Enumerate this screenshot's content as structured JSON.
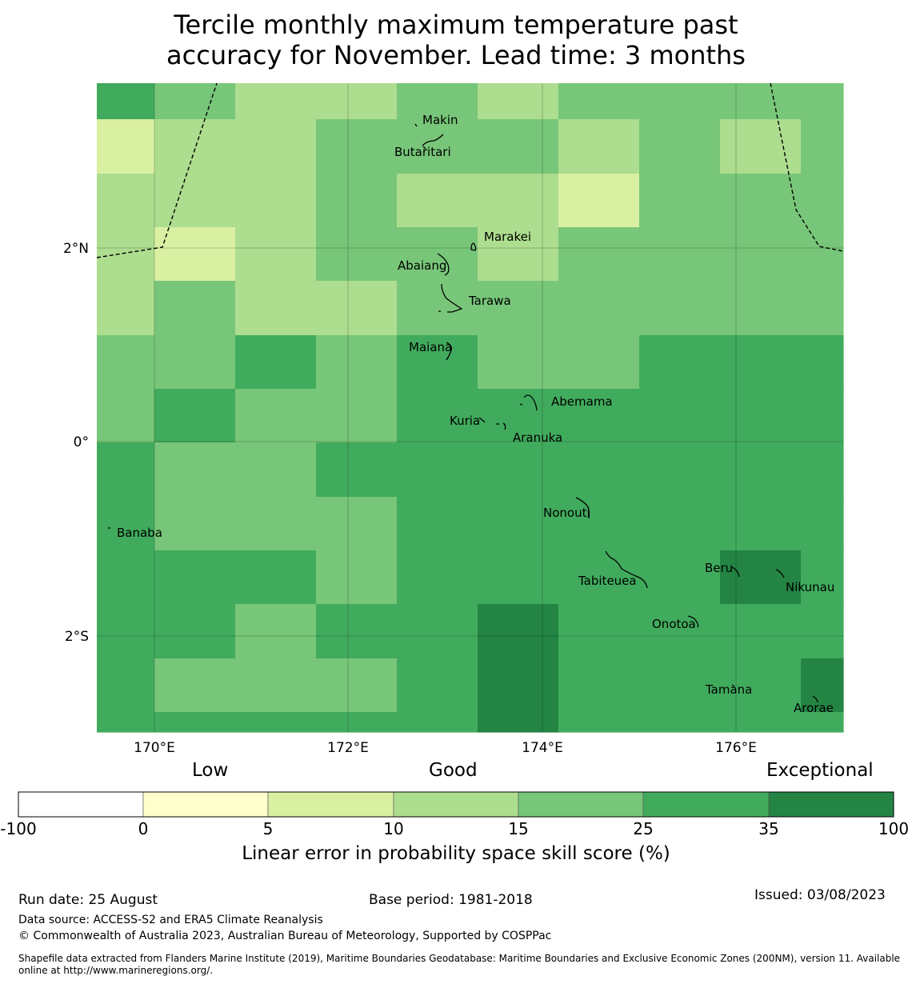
{
  "title": {
    "line1": "Tercile monthly maximum temperature past",
    "line2": "accuracy for November. Lead time: 3 months"
  },
  "map": {
    "lat_labels": [
      "2°N",
      "0°",
      "2°S"
    ],
    "lon_labels": [
      "170°E",
      "172°E",
      "174°E",
      "176°E"
    ],
    "cells": [
      [
        35,
        25,
        15,
        15,
        25,
        15,
        25,
        25,
        25,
        25
      ],
      [
        10,
        15,
        15,
        25,
        25,
        25,
        15,
        25,
        15,
        25
      ],
      [
        15,
        15,
        15,
        25,
        15,
        15,
        10,
        25,
        25,
        25
      ],
      [
        15,
        10,
        15,
        25,
        25,
        15,
        25,
        25,
        25,
        25
      ],
      [
        15,
        25,
        15,
        15,
        25,
        25,
        25,
        25,
        25,
        25
      ],
      [
        25,
        25,
        35,
        25,
        35,
        25,
        25,
        35,
        35,
        35
      ],
      [
        25,
        35,
        25,
        25,
        35,
        35,
        35,
        35,
        35,
        35
      ],
      [
        35,
        25,
        25,
        35,
        35,
        35,
        35,
        35,
        35,
        35
      ],
      [
        35,
        25,
        25,
        25,
        35,
        35,
        35,
        35,
        35,
        35
      ],
      [
        35,
        35,
        35,
        25,
        35,
        35,
        35,
        35,
        100,
        35
      ],
      [
        35,
        35,
        25,
        35,
        35,
        100,
        35,
        35,
        35,
        35
      ],
      [
        35,
        25,
        25,
        25,
        35,
        100,
        35,
        35,
        35,
        100
      ],
      [
        35,
        35,
        35,
        35,
        35,
        100,
        35,
        35,
        35,
        35
      ]
    ],
    "islands": [
      "Makin",
      "Butaritari",
      "Marakei",
      "Abaiang",
      "Tarawa",
      "Maiana",
      "Abemama",
      "Kuria",
      "Aranuka",
      "Banaba",
      "Nonouti",
      "Beru",
      "Nikunau",
      "Tabiteuea",
      "Onotoa",
      "Tamana",
      "Arorae"
    ]
  },
  "colorbar": {
    "categories": [
      "Low",
      "Good",
      "Exceptional"
    ],
    "ticks": [
      "-100",
      "0",
      "5",
      "10",
      "15",
      "25",
      "35",
      "100"
    ],
    "colors": [
      "#ffffff",
      "#ffffcc",
      "#d9f0a3",
      "#addd8e",
      "#78c679",
      "#41ab5d",
      "#238443"
    ],
    "label": "Linear error in probability space skill score (%)"
  },
  "footer": {
    "run_date": "Run date: 25 August",
    "base_period": "Base period: 1981-2018",
    "issued": "Issued: 03/08/2023",
    "data_source": "Data source: ACCESS-S2 and ERA5 Climate Reanalysis",
    "copyright": "© Commonwealth of Australia 2023, Australian Bureau of Meteorology, Supported by COSPPac",
    "shapefile": "Shapefile data extracted from Flanders Marine Institute (2019), Maritime Boundaries Geodatabase: Maritime Boundaries and Exclusive Economic Zones (200NM), version 11. Available online at http://www.marineregions.org/."
  }
}
